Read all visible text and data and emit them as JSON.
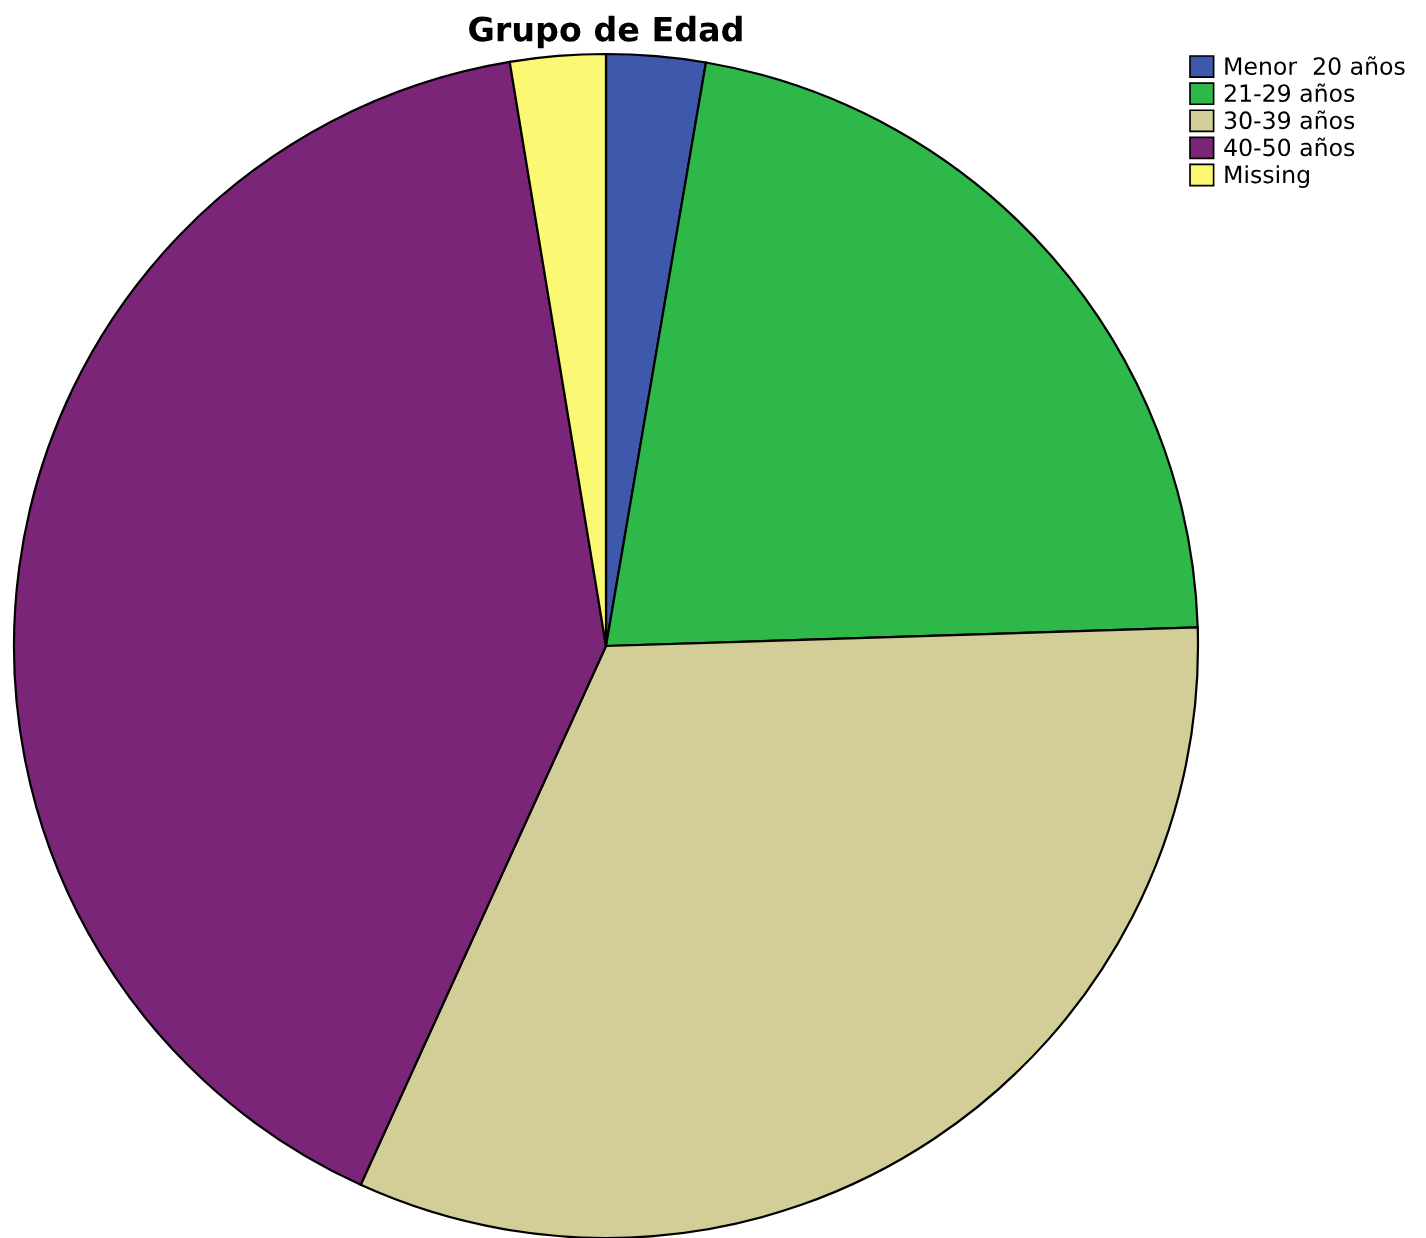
{
  "chart_data": {
    "type": "pie",
    "title": "Grupo de Edad",
    "categories": [
      "Menor  20 años",
      "21-29 años",
      "30-39 años",
      "40-50 años",
      "Missing"
    ],
    "values": [
      2.7,
      21.8,
      32.3,
      40.6,
      2.6
    ],
    "colors": [
      "#3e58ac",
      "#2fb84a",
      "#d3ce97",
      "#7b2578",
      "#fbf873"
    ],
    "legend": "top right"
  }
}
